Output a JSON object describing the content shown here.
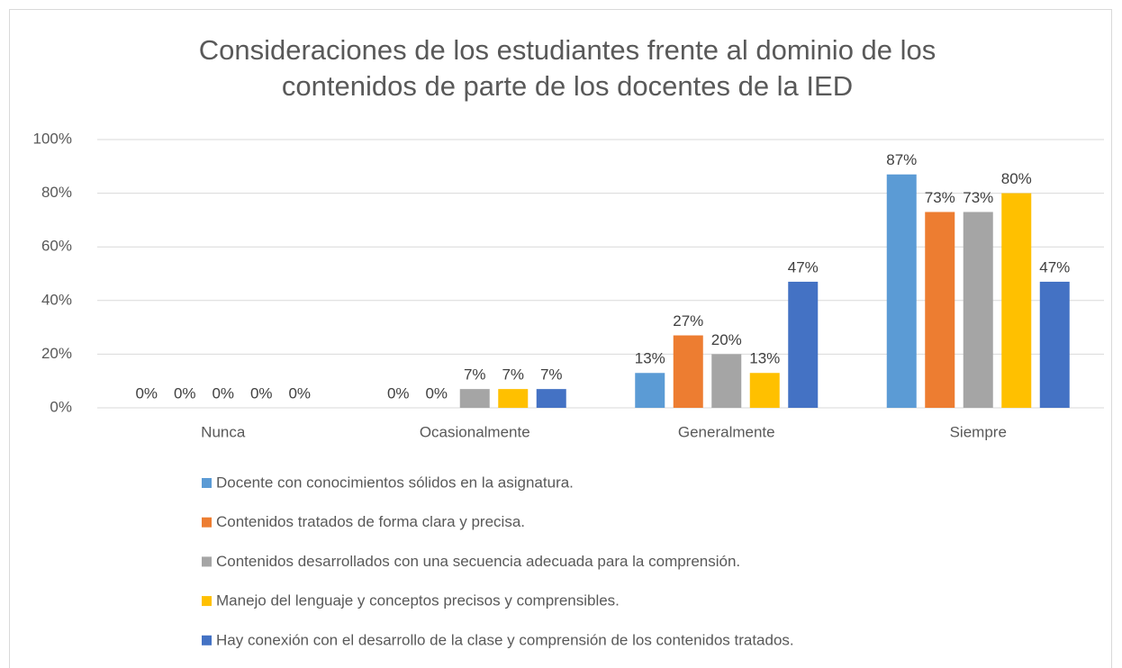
{
  "chart_data": {
    "type": "bar",
    "title": [
      "Consideraciones de los estudiantes frente al dominio de los",
      "contenidos de parte de los docentes de la IED"
    ],
    "categories": [
      "Nunca",
      "Ocasionalmente",
      "Generalmente",
      "Siempre"
    ],
    "series": [
      {
        "name": "Docente con conocimientos sólidos en la asignatura.",
        "color": "#5b9bd5",
        "values": [
          0,
          0,
          13,
          87
        ],
        "value_labels": [
          "0%",
          "0%",
          "13%",
          "87%"
        ]
      },
      {
        "name": "Contenidos tratados de forma clara y precisa.",
        "color": "#ed7d31",
        "values": [
          0,
          0,
          27,
          73
        ],
        "value_labels": [
          "0%",
          "0%",
          "27%",
          "73%"
        ]
      },
      {
        "name": "Contenidos desarrollados con una secuencia adecuada para la comprensión.",
        "color": "#a5a5a5",
        "values": [
          0,
          7,
          20,
          73
        ],
        "value_labels": [
          "0%",
          "7%",
          "20%",
          "73%"
        ]
      },
      {
        "name": "Manejo del lenguaje y conceptos precisos y comprensibles.",
        "color": "#ffc000",
        "values": [
          0,
          7,
          13,
          80
        ],
        "value_labels": [
          "0%",
          "7%",
          "13%",
          "80%"
        ]
      },
      {
        "name": "Hay conexión con el desarrollo de la clase y comprensión de los contenidos tratados.",
        "color": "#4472c4",
        "values": [
          0,
          7,
          47,
          47
        ],
        "value_labels": [
          "0%",
          "7%",
          "47%",
          "47%"
        ]
      }
    ],
    "ylim": [
      0,
      100
    ],
    "yticks": [
      {
        "value": 0,
        "label": "0%"
      },
      {
        "value": 20,
        "label": "20%"
      },
      {
        "value": 40,
        "label": "40%"
      },
      {
        "value": 60,
        "label": "60%"
      },
      {
        "value": 80,
        "label": "80%"
      },
      {
        "value": 100,
        "label": "100%"
      }
    ],
    "grid": true,
    "legend": "bottom"
  }
}
